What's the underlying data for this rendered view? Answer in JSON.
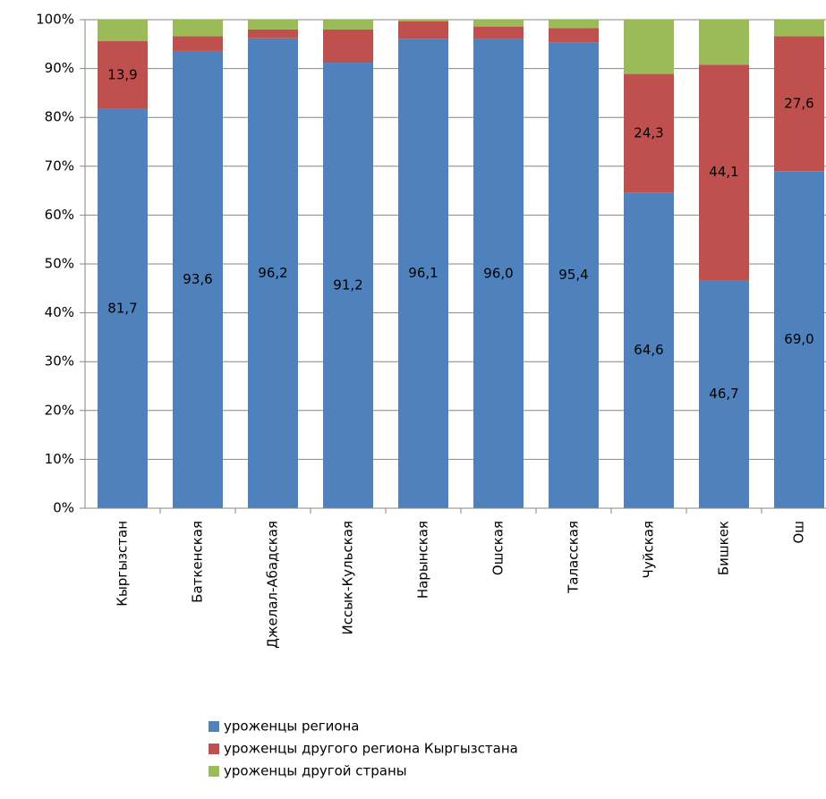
{
  "chart_data": {
    "type": "stacked_bar",
    "categories": [
      "Кыргызстан",
      "Баткенская",
      "Джелал-Абадская",
      "Иссык-Кульская",
      "Нарынская",
      "Ошская",
      "Таласская",
      "Чуйская",
      "Бишкек",
      "Ош"
    ],
    "series": [
      {
        "name": "уроженцы региона",
        "color": "#4f81bd",
        "values": [
          81.7,
          93.6,
          96.2,
          91.2,
          96.1,
          96.0,
          95.4,
          64.6,
          46.7,
          69.0
        ],
        "value_labels": [
          "81,7",
          "93,6",
          "96,2",
          "91,2",
          "96,1",
          "96,0",
          "95,4",
          "64,6",
          "46,7",
          "69,0"
        ]
      },
      {
        "name": "уроженцы другого региона Кыргызстана",
        "color": "#c0504d",
        "values": [
          13.9,
          3.0,
          1.8,
          6.8,
          3.6,
          2.6,
          2.9,
          24.3,
          44.1,
          27.6
        ],
        "value_labels": [
          "13,9",
          null,
          null,
          null,
          null,
          null,
          null,
          "24,3",
          "44,1",
          "27,6"
        ]
      },
      {
        "name": "уроженцы другой страны",
        "color": "#9bbb59",
        "values": [
          4.4,
          3.4,
          2.0,
          2.0,
          0.3,
          1.4,
          1.7,
          11.1,
          9.2,
          3.4
        ]
      }
    ],
    "ylim": [
      0,
      100
    ],
    "yticks": [
      {
        "value": 0,
        "label": "0%"
      },
      {
        "value": 10,
        "label": "10%"
      },
      {
        "value": 20,
        "label": "20%"
      },
      {
        "value": 30,
        "label": "30%"
      },
      {
        "value": 40,
        "label": "40%"
      },
      {
        "value": 50,
        "label": "50%"
      },
      {
        "value": 60,
        "label": "60%"
      },
      {
        "value": 70,
        "label": "70%"
      },
      {
        "value": 80,
        "label": "80%"
      },
      {
        "value": 90,
        "label": "90%"
      },
      {
        "value": 100,
        "label": "100%"
      }
    ],
    "grid": true
  }
}
